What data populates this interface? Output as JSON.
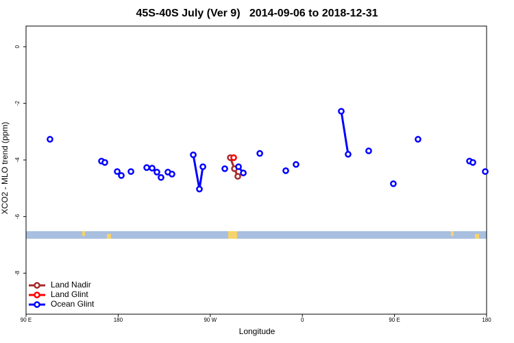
{
  "chart_data": {
    "type": "line",
    "title": "45S-40S July (Ver 9)   2014-09-06 to 2018-12-31",
    "xlabel": "Longitude",
    "ylabel": "XCO2 - MLO trend (ppm)",
    "xlim": [
      90,
      540
    ],
    "xticks": [
      {
        "value": 90,
        "label": "90 E"
      },
      180,
      {
        "value": 270,
        "label": "90 W"
      },
      {
        "value": 360,
        "label": "0"
      },
      {
        "value": 450,
        "label": "90 E"
      },
      {
        "value": 540,
        "label": "180"
      }
    ],
    "ylim": [
      -9.45,
      0.73
    ],
    "yticks": [
      -8,
      -6,
      -4,
      -2,
      0
    ],
    "legend": "bottom-left",
    "series": [
      {
        "name": "Land Nadir",
        "color": "#a52a2a",
        "x": [
          289.6,
          293.6,
          296.9
        ],
        "values": [
          -3.92,
          -4.31,
          -4.58
        ]
      },
      {
        "name": "Land Glint",
        "color": "#ff0000",
        "x": [
          292.9
        ],
        "values": [
          -3.92
        ]
      },
      {
        "name": "Ocean Glint",
        "color": "#0000ff",
        "x": [
          113.4,
          null,
          163.7,
          null,
          167.0,
          null,
          179.1,
          null,
          183.1,
          null,
          192.5,
          null,
          207.9,
          null,
          213.2,
          null,
          217.9,
          null,
          221.9,
          null,
          228.6,
          null,
          232.6,
          null,
          253.4,
          259.4,
          262.8,
          null,
          284.2,
          null,
          297.6,
          302.3,
          null,
          318.4,
          null,
          343.8,
          null,
          353.8,
          null,
          398.0,
          404.7,
          null,
          424.8,
          null,
          448.9,
          null,
          473.0,
          null,
          523.3,
          null,
          526.6,
          null,
          538.7
        ],
        "values": [
          -3.27,
          null,
          -4.04,
          null,
          -4.09,
          null,
          -4.41,
          null,
          -4.55,
          null,
          -4.41,
          null,
          -4.27,
          null,
          -4.29,
          null,
          -4.43,
          null,
          -4.62,
          null,
          -4.43,
          null,
          -4.5,
          null,
          -3.82,
          -5.03,
          -4.24,
          null,
          -4.31,
          null,
          -4.24,
          -4.46,
          null,
          -3.77,
          null,
          -4.38,
          null,
          -4.16,
          null,
          -2.28,
          -3.8,
          null,
          -3.68,
          null,
          -4.84,
          null,
          -3.27,
          null,
          -4.04,
          null,
          -4.09,
          null,
          -4.41
        ]
      }
    ]
  }
}
